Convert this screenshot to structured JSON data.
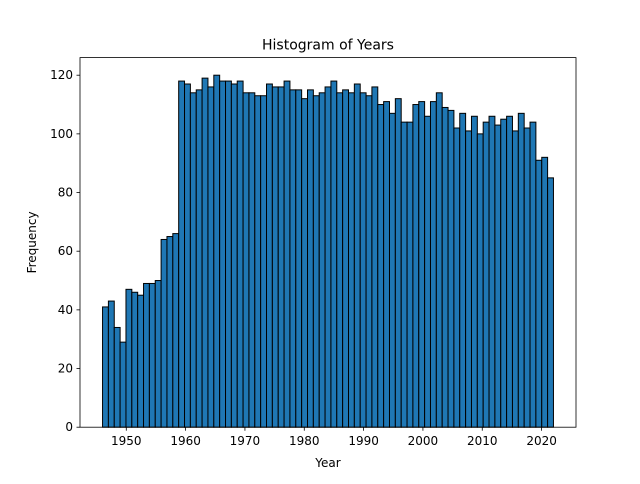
{
  "chart_data": {
    "type": "bar",
    "title": "Histogram of Years",
    "xlabel": "Year",
    "ylabel": "Frequency",
    "xlim": [
      1942.2,
      2025.8
    ],
    "ylim": [
      0,
      126
    ],
    "xticks": [
      1950,
      1960,
      1970,
      1980,
      1990,
      2000,
      2010,
      2020
    ],
    "yticks": [
      0,
      20,
      40,
      60,
      80,
      100,
      120
    ],
    "grid": false,
    "legend": "none",
    "bar_color": "#1f77b4",
    "edge_color": "#000000",
    "bins": {
      "start": 1946,
      "end": 2022,
      "width": 1
    },
    "values": [
      41,
      43,
      34,
      29,
      47,
      46,
      45,
      49,
      49,
      50,
      64,
      65,
      66,
      118,
      117,
      114,
      115,
      119,
      116,
      120,
      118,
      118,
      117,
      118,
      114,
      114,
      113,
      113,
      117,
      116,
      116,
      118,
      115,
      115,
      112,
      115,
      113,
      114,
      116,
      118,
      114,
      115,
      114,
      117,
      114,
      113,
      116,
      110,
      111,
      107,
      112,
      104,
      104,
      110,
      111,
      106,
      111,
      114,
      109,
      108,
      102,
      107,
      101,
      106,
      100,
      104,
      106,
      103,
      105,
      106,
      101,
      107,
      102,
      104,
      91,
      92,
      85
    ]
  }
}
